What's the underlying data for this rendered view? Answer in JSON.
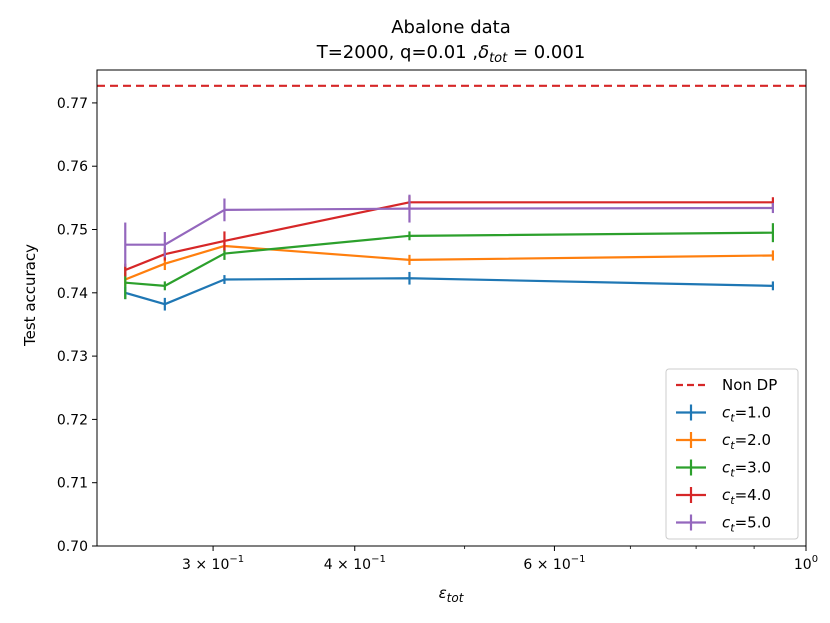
{
  "chart_data": {
    "type": "line",
    "title": "Abalone data",
    "subtitle_prefix": "T=2000, q=0.01 ,",
    "subtitle_symbol": "δ",
    "subtitle_symbol_sub": "tot",
    "subtitle_suffix": " = 0.001",
    "xlabel_symbol": "ε",
    "xlabel_sub": "tot",
    "ylabel": "Test accuracy",
    "xscale": "log",
    "xlim": [
      0.237,
      1.0
    ],
    "ylim": [
      0.7,
      0.7752
    ],
    "yticks": [
      0.7,
      0.71,
      0.72,
      0.73,
      0.74,
      0.75,
      0.76,
      0.77
    ],
    "ytick_labels": [
      "0.70",
      "0.71",
      "0.72",
      "0.73",
      "0.74",
      "0.75",
      "0.76",
      "0.77"
    ],
    "xticks": [
      {
        "value": 0.3,
        "label_base": "3 × 10",
        "label_exp": "−1"
      },
      {
        "value": 0.4,
        "label_base": "4 × 10",
        "label_exp": "−1"
      },
      {
        "value": 0.6,
        "label_base": "6 × 10",
        "label_exp": "−1"
      },
      {
        "value": 1.0,
        "label_base": "10",
        "label_exp": "0"
      }
    ],
    "x": [
      0.251,
      0.272,
      0.307,
      0.447,
      0.935
    ],
    "reference": {
      "name": "Non DP",
      "value": 0.7727,
      "color": "#d62728"
    },
    "legend_location": "lower-right",
    "series": [
      {
        "name": "c",
        "sub": "t",
        "label_value": "=1.0",
        "color": "#1f77b4",
        "values": [
          0.74,
          0.7382,
          0.7421,
          0.7423,
          0.7411
        ],
        "errors": [
          0.001,
          0.001,
          0.0007,
          0.001,
          0.0007
        ]
      },
      {
        "name": "c",
        "sub": "t",
        "label_value": "=2.0",
        "color": "#ff7f0e",
        "values": [
          0.7421,
          0.7446,
          0.7474,
          0.7452,
          0.7459
        ],
        "errors": [
          0.001,
          0.001,
          0.001,
          0.0008,
          0.0008
        ]
      },
      {
        "name": "c",
        "sub": "t",
        "label_value": "=3.0",
        "color": "#2ca02c",
        "values": [
          0.7416,
          0.7411,
          0.7462,
          0.749,
          0.7495
        ],
        "errors": [
          0.0026,
          0.0007,
          0.001,
          0.0007,
          0.0015
        ]
      },
      {
        "name": "c",
        "sub": "t",
        "label_value": "=4.0",
        "color": "#d62728",
        "values": [
          0.7436,
          0.7461,
          0.7482,
          0.7543,
          0.7543
        ],
        "errors": [
          0.001,
          0.001,
          0.0015,
          0.001,
          0.0008
        ]
      },
      {
        "name": "c",
        "sub": "t",
        "label_value": "=5.0",
        "color": "#9467bd",
        "values": [
          0.7476,
          0.7476,
          0.7531,
          0.7533,
          0.7534
        ],
        "errors": [
          0.0035,
          0.002,
          0.0018,
          0.0022,
          0.0008
        ]
      }
    ]
  }
}
